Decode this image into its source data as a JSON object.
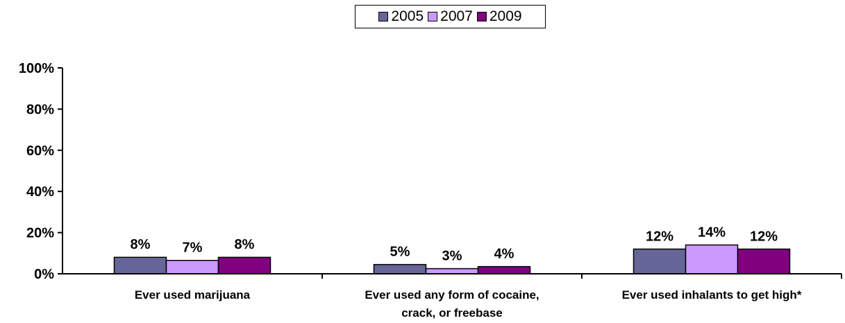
{
  "chart_data": {
    "type": "bar",
    "categories": [
      [
        "Ever used marijuana"
      ],
      [
        "Ever used any form of cocaine,",
        "crack, or freebase"
      ],
      [
        "Ever used inhalants to get high*"
      ]
    ],
    "series": [
      {
        "name": "2005",
        "color": "#666699",
        "values": [
          8,
          5,
          12
        ],
        "labels": [
          "8%",
          "5%",
          "12%"
        ]
      },
      {
        "name": "2007",
        "color": "#cc99ff",
        "values": [
          7,
          3,
          14
        ],
        "labels": [
          "7%",
          "3%",
          "14%"
        ]
      },
      {
        "name": "2009",
        "color": "#800080",
        "values": [
          8,
          4,
          12
        ],
        "labels": [
          "8%",
          "4%",
          "12%"
        ]
      }
    ],
    "plotted_values": [
      [
        8,
        4.5,
        12
      ],
      [
        6.5,
        2.5,
        14
      ],
      [
        8,
        3.5,
        12
      ]
    ],
    "yticks": [
      "0%",
      "20%",
      "40%",
      "60%",
      "80%",
      "100%"
    ],
    "ylim": [
      0,
      100
    ],
    "grid": false,
    "legend_position": "top-center"
  }
}
